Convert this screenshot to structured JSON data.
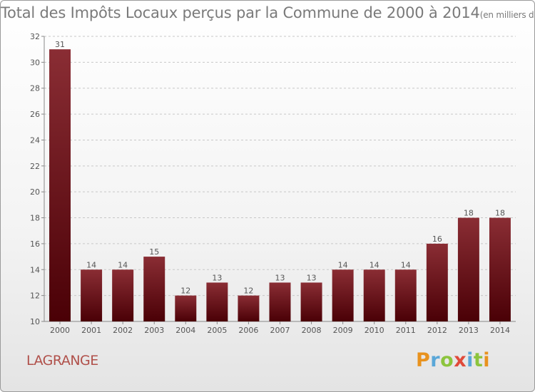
{
  "header": {
    "title": "Total des Impôts Locaux perçus par la Commune de 2000 à 2014",
    "subtitle": "(en milliers d'€)"
  },
  "commune": "LAGRANGE",
  "logo": {
    "letters": [
      "P",
      "r",
      "o",
      "x",
      "i",
      "t",
      "i"
    ],
    "colors": [
      "#e8921e",
      "#5aa7d8",
      "#8cc43d",
      "#e04a3a",
      "#5aa7d8",
      "#8cc43d",
      "#e8921e"
    ]
  },
  "colors": {
    "bar_top": "#8a2d34",
    "bar_bottom": "#4a0006",
    "axis_text": "#555555",
    "grid": "#c8c8c8"
  },
  "chart_data": {
    "type": "bar",
    "title": "Total des Impôts Locaux perçus par la Commune de 2000 à 2014",
    "subtitle": "(en milliers d'€)",
    "xlabel": "",
    "ylabel": "",
    "categories": [
      "2000",
      "2001",
      "2002",
      "2003",
      "2004",
      "2005",
      "2006",
      "2007",
      "2008",
      "2009",
      "2010",
      "2011",
      "2012",
      "2013",
      "2014"
    ],
    "values": [
      31,
      14,
      14,
      15,
      12,
      13,
      12,
      13,
      13,
      14,
      14,
      14,
      16,
      18,
      18
    ],
    "ylim": [
      10,
      32
    ],
    "yticks": [
      10,
      12,
      14,
      16,
      18,
      20,
      22,
      24,
      26,
      28,
      30,
      32
    ],
    "grid": true,
    "data_labels": true
  }
}
